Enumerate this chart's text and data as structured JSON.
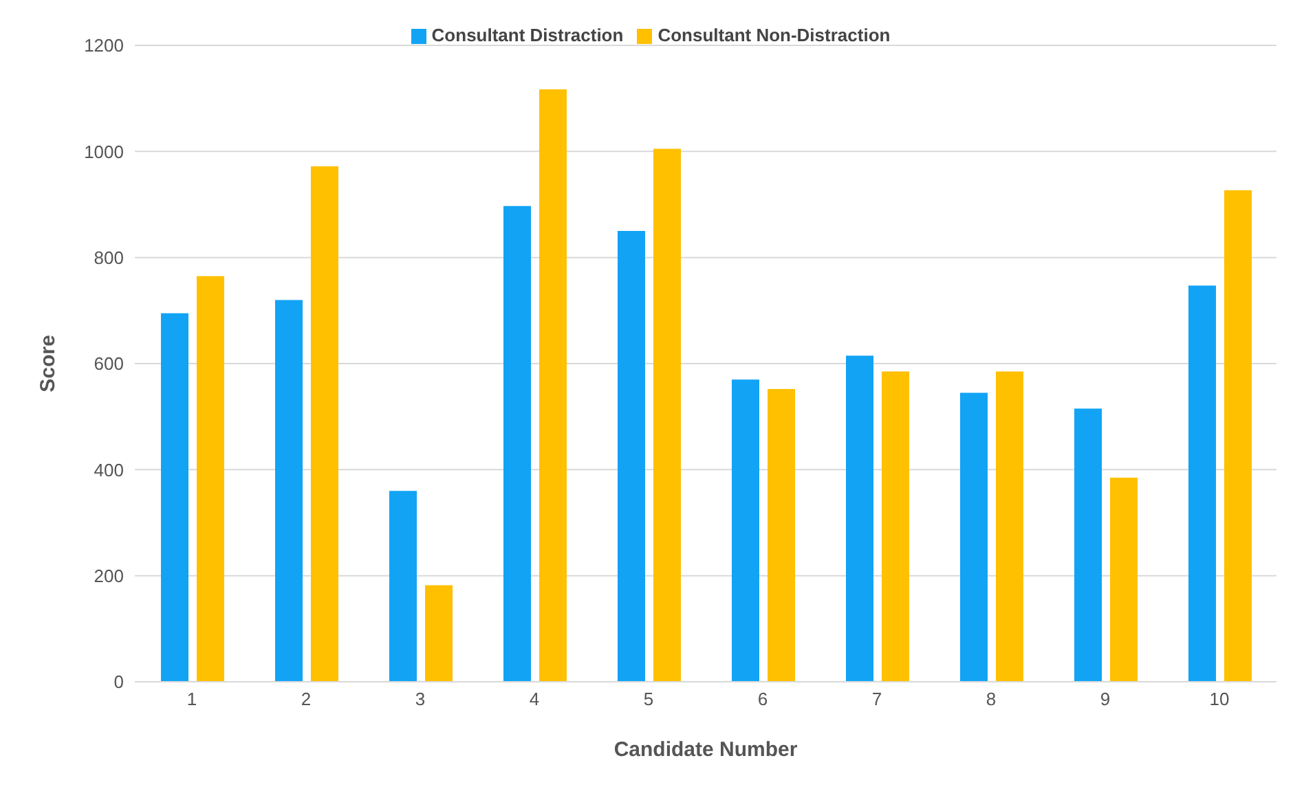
{
  "chart_data": {
    "type": "bar",
    "xlabel": "Candidate Number",
    "ylabel": "Score",
    "categories": [
      "1",
      "2",
      "3",
      "4",
      "5",
      "6",
      "7",
      "8",
      "9",
      "10"
    ],
    "series": [
      {
        "name": "Consultant Distraction",
        "color": "#12a3f5",
        "values": [
          695,
          720,
          360,
          897,
          850,
          570,
          615,
          545,
          515,
          747
        ]
      },
      {
        "name": "Consultant Non-Distraction",
        "color": "#ffc000",
        "values": [
          765,
          972,
          182,
          1117,
          1005,
          552,
          585,
          585,
          385,
          927
        ]
      }
    ],
    "ylim": [
      0,
      1200
    ],
    "yticks": [
      0,
      200,
      400,
      600,
      800,
      1000,
      1200
    ],
    "grid": "y",
    "legend": "top"
  }
}
